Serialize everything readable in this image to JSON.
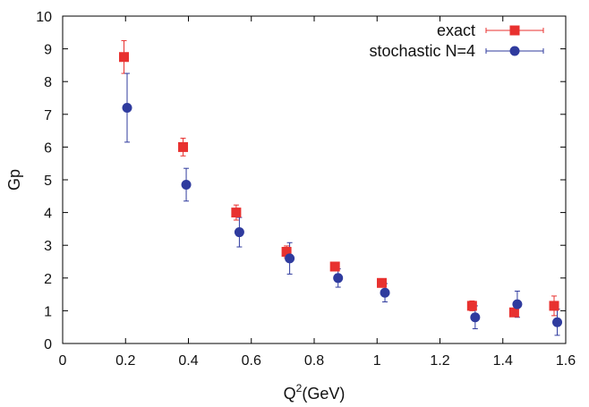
{
  "chart_data": {
    "type": "scatter",
    "title": "",
    "xlabel_main": "Q",
    "xlabel_sup": "2",
    "xlabel_rest": "(GeV)",
    "ylabel": "Gp",
    "xlim": [
      0,
      1.6
    ],
    "ylim": [
      0,
      10
    ],
    "xticks": [
      0,
      0.2,
      0.4,
      0.6,
      0.8,
      1,
      1.2,
      1.4,
      1.6
    ],
    "yticks": [
      0,
      1,
      2,
      3,
      4,
      5,
      6,
      7,
      8,
      9,
      10
    ],
    "xtick_labels": [
      "0",
      "0.2",
      "0.4",
      "0.6",
      "0.8",
      "1",
      "1.2",
      "1.4",
      "1.6"
    ],
    "ytick_labels": [
      "0",
      "1",
      "2",
      "3",
      "4",
      "5",
      "6",
      "7",
      "8",
      "9",
      "10"
    ],
    "grid": false,
    "legend_position": "top-right",
    "series": [
      {
        "name": "exact",
        "marker": "square",
        "color": "#e8312f",
        "points": [
          {
            "x": 0.195,
            "y": 8.75,
            "err": 0.5
          },
          {
            "x": 0.383,
            "y": 6.0,
            "err": 0.27
          },
          {
            "x": 0.552,
            "y": 4.0,
            "err": 0.23
          },
          {
            "x": 0.712,
            "y": 2.8,
            "err": 0.18
          },
          {
            "x": 0.866,
            "y": 2.35,
            "err": 0.1
          },
          {
            "x": 1.015,
            "y": 1.85,
            "err": 0.1
          },
          {
            "x": 1.302,
            "y": 1.15,
            "err": 0.15
          },
          {
            "x": 1.436,
            "y": 0.95,
            "err": 0.12
          },
          {
            "x": 1.563,
            "y": 1.15,
            "err": 0.3
          }
        ]
      },
      {
        "name": "stochastic N=4",
        "marker": "circle",
        "color": "#2f3b9e",
        "points": [
          {
            "x": 0.205,
            "y": 7.2,
            "err": 1.05
          },
          {
            "x": 0.393,
            "y": 4.85,
            "err": 0.5
          },
          {
            "x": 0.562,
            "y": 3.4,
            "err": 0.45
          },
          {
            "x": 0.722,
            "y": 2.6,
            "err": 0.48
          },
          {
            "x": 0.876,
            "y": 2.0,
            "err": 0.28
          },
          {
            "x": 1.025,
            "y": 1.55,
            "err": 0.28
          },
          {
            "x": 1.312,
            "y": 0.8,
            "err": 0.35
          },
          {
            "x": 1.446,
            "y": 1.2,
            "err": 0.4
          },
          {
            "x": 1.573,
            "y": 0.65,
            "err": 0.4
          }
        ]
      }
    ]
  }
}
